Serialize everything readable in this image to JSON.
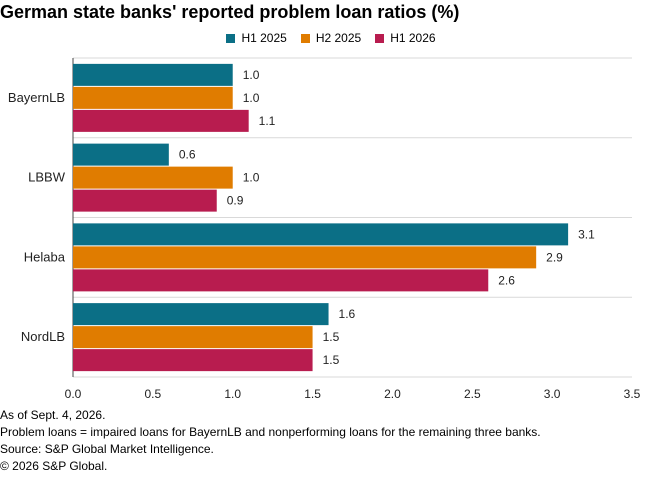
{
  "title": "German state banks' reported problem loan ratios (%)",
  "colors": {
    "H1 2025": "#0b6f86",
    "H2 2025": "#e07c00",
    "H1 2026": "#b81c4f",
    "grid": "#d9d9d9",
    "axis": "#444444"
  },
  "chart_data": {
    "type": "bar",
    "orientation": "horizontal",
    "categories": [
      "BayernLB",
      "LBBW",
      "Helaba",
      "NordLB"
    ],
    "series": [
      {
        "name": "H1 2025",
        "values": [
          1.0,
          0.6,
          3.1,
          1.6
        ]
      },
      {
        "name": "H2 2025",
        "values": [
          1.0,
          1.0,
          2.9,
          1.5
        ]
      },
      {
        "name": "H1 2026",
        "values": [
          1.1,
          0.9,
          2.6,
          1.5
        ]
      }
    ],
    "value_labels": [
      [
        "1.0",
        "0.6",
        "3.1",
        "1.6"
      ],
      [
        "1.0",
        "1.0",
        "2.9",
        "1.5"
      ],
      [
        "1.1",
        "0.9",
        "2.6",
        "1.5"
      ]
    ],
    "xlim": [
      0,
      3.5
    ],
    "xticks": [
      "0.0",
      "0.5",
      "1.0",
      "1.5",
      "2.0",
      "2.5",
      "3.0",
      "3.5"
    ],
    "xlabel": "",
    "ylabel": "",
    "legend_position": "top-center",
    "grid": "horizontal separators between categories"
  },
  "notes": [
    "As of Sept. 4, 2026.",
    "Problem loans = impaired loans for BayernLB and nonperforming loans for the remaining three banks.",
    "Source: S&P Global Market Intelligence.",
    "© 2026 S&P Global."
  ]
}
